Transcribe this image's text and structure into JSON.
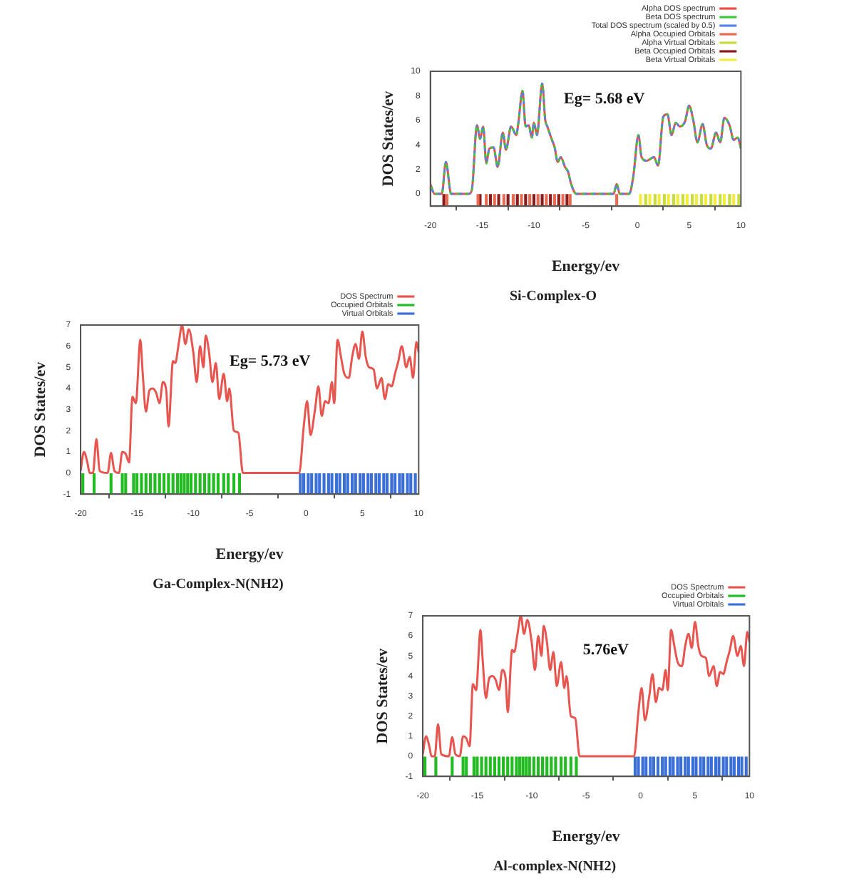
{
  "chart_data": [
    {
      "type": "line",
      "title": "Si-Complex-O",
      "xlabel": "Energy/ev",
      "ylabel": "DOS States/ev",
      "xlim": [
        -20,
        10
      ],
      "xticks": [
        -20,
        -15,
        -10,
        -5,
        0,
        5,
        10
      ],
      "ylim": [
        -1,
        10
      ],
      "yticks": [
        0,
        2,
        4,
        6,
        8,
        10
      ],
      "legend": "top right",
      "annotations": [
        "Eg= 5.68 eV"
      ],
      "x": [
        -20,
        -19.6,
        -18.9,
        -18.5,
        -18,
        -16.3,
        -16,
        -15.5,
        -15.2,
        -14.9,
        -14.6,
        -14.3,
        -13.9,
        -13.5,
        -13,
        -12.7,
        -12.2,
        -11.7,
        -11.5,
        -11.1,
        -10.8,
        -10.5,
        -10.2,
        -10,
        -9.7,
        -9.2,
        -8.9,
        -8.7,
        -8.3,
        -8,
        -7.7,
        -7.4,
        -7,
        -6.7,
        -6.4,
        -5.9,
        -2.3,
        -2,
        -1.7,
        -0.8,
        -0.4,
        0.1,
        0.4,
        0.9,
        1.6,
        2,
        2.5,
        2.9,
        3.3,
        3.7,
        4.1,
        4.6,
        5,
        5.4,
        5.8,
        6.3,
        6.7,
        7.1,
        7.6,
        8,
        8.4,
        8.9,
        9.3,
        9.7,
        10
      ],
      "series": [
        {
          "name": "Alpha DOS spectrum",
          "color": "#e8504a",
          "values": [
            0.8,
            0,
            0,
            2.6,
            0,
            0,
            0.3,
            5.6,
            4.5,
            5.5,
            2.5,
            3.7,
            3.8,
            2.2,
            5,
            3.6,
            5.5,
            4.8,
            5.8,
            8.4,
            5.5,
            5.6,
            4.6,
            5.8,
            4.8,
            9,
            6,
            5.5,
            4.5,
            3.8,
            2.6,
            3,
            2.2,
            1.8,
            0.8,
            0,
            0,
            0.8,
            0,
            0,
            1.4,
            4.8,
            3,
            2.7,
            3,
            2.3,
            6.3,
            6.5,
            4.8,
            5.8,
            5.5,
            5.9,
            7.2,
            6,
            4.2,
            5.7,
            4,
            3.7,
            5,
            4.2,
            6.2,
            5.6,
            4.4,
            4.6,
            3.7
          ]
        },
        {
          "name": "Beta DOS spectrum",
          "color": "#3cc83c",
          "line_style": "dashed",
          "values": [
            0.8,
            0,
            0,
            2.6,
            0,
            0,
            0.3,
            5.6,
            4.5,
            5.5,
            2.5,
            3.7,
            3.8,
            2.2,
            5,
            3.6,
            5.5,
            4.8,
            5.8,
            8.4,
            5.5,
            5.6,
            4.6,
            5.8,
            4.8,
            9,
            6,
            5.5,
            4.5,
            3.8,
            2.6,
            3,
            2.2,
            1.8,
            0.8,
            0,
            0,
            0.8,
            0,
            0,
            1.4,
            4.8,
            3,
            2.7,
            3,
            2.3,
            6.3,
            6.5,
            4.8,
            5.8,
            5.5,
            5.9,
            7.2,
            6,
            4.2,
            5.7,
            4,
            3.7,
            5,
            4.2,
            6.2,
            5.6,
            4.4,
            4.6,
            3.7
          ]
        },
        {
          "name": "Total DOS spectrum (scaled by 0.5)",
          "color": "#5a82e6",
          "line_style": "dashed",
          "values": [
            0.8,
            0,
            0,
            2.6,
            0,
            0,
            0.3,
            5.6,
            4.5,
            5.5,
            2.5,
            3.7,
            3.8,
            2.2,
            5,
            3.6,
            5.5,
            4.8,
            5.8,
            8.4,
            5.5,
            5.6,
            4.6,
            5.8,
            4.8,
            9,
            6,
            5.5,
            4.5,
            3.8,
            2.6,
            3,
            2.2,
            1.8,
            0.8,
            0,
            0,
            0.8,
            0,
            0,
            1.4,
            4.8,
            3,
            2.7,
            3,
            2.3,
            6.3,
            6.5,
            4.8,
            5.8,
            5.5,
            5.9,
            7.2,
            6,
            4.2,
            5.7,
            4,
            3.7,
            5,
            4.2,
            6.2,
            5.6,
            4.4,
            4.6,
            3.7
          ]
        },
        {
          "name": "Alpha Occupied Orbitals",
          "type": "bar",
          "color": "#e86a50",
          "x": [
            -18.4,
            -15.4,
            -14.6,
            -13.8,
            -12.9,
            -12,
            -11.2,
            -10.4,
            -9.6,
            -8.8,
            -8,
            -7.2,
            -6.5,
            -2
          ],
          "values": [
            1,
            1,
            1,
            1,
            1,
            1,
            1,
            1,
            1,
            1,
            1,
            1,
            1,
            1
          ],
          "base": [
            -1,
            -1,
            -1,
            -1,
            -1,
            -1,
            -1,
            -1,
            -1,
            -1,
            -1,
            -1,
            -1,
            -1
          ]
        },
        {
          "name": "Alpha Virtual Orbitals",
          "type": "bar",
          "color": "#c8dc3c",
          "x": [
            0.8,
            1.7,
            2.6,
            3.5,
            4.4,
            5.3,
            6.2,
            7.1,
            8,
            8.9,
            9.8
          ],
          "values": [
            1,
            1,
            1,
            1,
            1,
            1,
            1,
            1,
            1,
            1,
            1
          ],
          "base": [
            -1,
            -1,
            -1,
            -1,
            -1,
            -1,
            -1,
            -1,
            -1,
            -1,
            -1
          ]
        },
        {
          "name": "Beta Occupied Orbitals",
          "type": "bar",
          "color": "#8b1a1a",
          "x": [
            -18.7,
            -15.2,
            -14.2,
            -13.4,
            -12.5,
            -11.6,
            -10.8,
            -10,
            -9.2,
            -8.4,
            -7.6,
            -6.8
          ],
          "values": [
            1,
            1,
            1,
            1,
            1,
            1,
            1,
            1,
            1,
            1,
            1,
            1
          ],
          "base": [
            -1,
            -1,
            -1,
            -1,
            -1,
            -1,
            -1,
            -1,
            -1,
            -1,
            -1,
            -1
          ]
        },
        {
          "name": "Beta Virtual Orbitals",
          "type": "bar",
          "color": "#f2ec3a",
          "x": [
            0.3,
            1.2,
            2.1,
            3,
            3.9,
            4.8,
            5.7,
            6.6,
            7.5,
            8.4,
            9.3
          ],
          "values": [
            1,
            1,
            1,
            1,
            1,
            1,
            1,
            1,
            1,
            1,
            1
          ],
          "base": [
            -1,
            -1,
            -1,
            -1,
            -1,
            -1,
            -1,
            -1,
            -1,
            -1,
            -1
          ]
        }
      ]
    },
    {
      "type": "line",
      "title": "Ga-Complex-N(NH2)",
      "xlabel": "Energy/ev",
      "ylabel": "DOS States/ev",
      "xlim": [
        -20,
        10
      ],
      "xticks": [
        -20,
        -15,
        -10,
        -5,
        0,
        5,
        10
      ],
      "ylim": [
        -1,
        7
      ],
      "yticks": [
        -1,
        0,
        1,
        2,
        3,
        4,
        5,
        6,
        7
      ],
      "legend": "top right",
      "annotations": [
        "Eg= 5.73 eV"
      ],
      "x": [
        -20,
        -19.7,
        -19.4,
        -19.2,
        -18.9,
        -18.6,
        -18.3,
        -17.6,
        -17.3,
        -17,
        -16.6,
        -16.3,
        -16,
        -15.7,
        -15.4,
        -15.1,
        -14.7,
        -14.5,
        -14.2,
        -13.9,
        -13.6,
        -13.3,
        -13,
        -12.7,
        -12.4,
        -12.2,
        -11.8,
        -11.6,
        -11.3,
        -11,
        -10.7,
        -10.4,
        -10,
        -9.7,
        -9.4,
        -9.1,
        -8.9,
        -8.6,
        -8.3,
        -8,
        -7.7,
        -7.3,
        -7,
        -6.8,
        -6.4,
        -6,
        -5.6,
        -0.6,
        -0.2,
        0.1,
        0.4,
        0.8,
        1.1,
        1.4,
        1.7,
        2,
        2.3,
        2.5,
        2.8,
        3.1,
        3.4,
        3.8,
        4.1,
        4.4,
        4.7,
        5,
        5.3,
        5.6,
        6,
        6.3,
        6.7,
        7,
        7.3,
        7.6,
        7.9,
        8.2,
        8.5,
        8.9,
        9.2,
        9.5,
        9.8,
        10
      ],
      "series": [
        {
          "name": "DOS Spectrum",
          "color": "#e8544e",
          "values": [
            0.1,
            1,
            0.5,
            0,
            0,
            1.6,
            0.1,
            0,
            0.95,
            0.1,
            0,
            1,
            0.9,
            0.5,
            3.6,
            3.3,
            6.3,
            4.8,
            2.9,
            3.9,
            4,
            3.8,
            3.3,
            4.3,
            3.9,
            2.2,
            5.3,
            5.2,
            6.1,
            7,
            6.1,
            6.8,
            5.7,
            4.3,
            6,
            5,
            6.5,
            5.7,
            4.3,
            5.2,
            3.5,
            4.7,
            3.4,
            4,
            2,
            1.9,
            0,
            0,
            2.2,
            3.4,
            1.8,
            3,
            4.1,
            2.7,
            3.4,
            3.3,
            4.3,
            3.3,
            6.3,
            5.5,
            4.7,
            4.5,
            5.5,
            6.1,
            5.4,
            6.7,
            5.5,
            5,
            4.9,
            4,
            4.5,
            3.5,
            4.2,
            4.1,
            4.7,
            5.3,
            6,
            5,
            5.5,
            4.5,
            6.2,
            5.7
          ]
        },
        {
          "name": "Occupied Orbitals",
          "type": "bar",
          "color": "#22bb22",
          "x": [
            -19.8,
            -18.8,
            -17.3,
            -16.3,
            -16,
            -15.3,
            -15,
            -14.6,
            -14.2,
            -13.8,
            -13.4,
            -13,
            -12.6,
            -12.2,
            -11.8,
            -11.4,
            -11.1,
            -10.8,
            -10.5,
            -10.2,
            -9.8,
            -9.4,
            -9,
            -8.6,
            -8.2,
            -7.8,
            -7.3,
            -6.9,
            -6.4,
            -5.9
          ],
          "values": [
            1,
            1,
            1,
            1,
            1,
            1,
            1,
            1,
            1,
            1,
            1,
            1,
            1,
            1,
            1,
            1,
            1,
            1,
            1,
            1,
            1,
            1,
            1,
            1,
            1,
            1,
            1,
            1,
            1,
            1
          ],
          "base": [
            -1,
            -1,
            -1,
            -1,
            -1,
            -1,
            -1,
            -1,
            -1,
            -1,
            -1,
            -1,
            -1,
            -1,
            -1,
            -1,
            -1,
            -1,
            -1,
            -1,
            -1,
            -1,
            -1,
            -1,
            -1,
            -1,
            -1,
            -1,
            -1,
            -1
          ]
        },
        {
          "name": "Virtual Orbitals",
          "type": "bar",
          "color": "#3a6fd8",
          "x": [
            -0.5,
            -0.2,
            0.2,
            0.5,
            0.9,
            1.2,
            1.6,
            2,
            2.3,
            2.7,
            3,
            3.4,
            3.7,
            4.1,
            4.4,
            4.8,
            5.1,
            5.5,
            5.8,
            6.2,
            6.5,
            6.9,
            7.2,
            7.6,
            7.9,
            8.3,
            8.6,
            9,
            9.3,
            9.7
          ],
          "values": [
            1,
            1,
            1,
            1,
            1,
            1,
            1,
            1,
            1,
            1,
            1,
            1,
            1,
            1,
            1,
            1,
            1,
            1,
            1,
            1,
            1,
            1,
            1,
            1,
            1,
            1,
            1,
            1,
            1,
            1
          ],
          "base": [
            -1,
            -1,
            -1,
            -1,
            -1,
            -1,
            -1,
            -1,
            -1,
            -1,
            -1,
            -1,
            -1,
            -1,
            -1,
            -1,
            -1,
            -1,
            -1,
            -1,
            -1,
            -1,
            -1,
            -1,
            -1,
            -1,
            -1,
            -1,
            -1,
            -1
          ]
        }
      ]
    },
    {
      "type": "line",
      "title": "Al-complex-N(NH2)",
      "xlabel": "Energy/ev",
      "ylabel": "DOS States/ev",
      "xlim": [
        -20,
        10
      ],
      "xticks": [
        -20,
        -15,
        -10,
        -5,
        0,
        5,
        10
      ],
      "ylim": [
        -1,
        7
      ],
      "yticks": [
        -1,
        0,
        1,
        2,
        3,
        4,
        5,
        6,
        7
      ],
      "legend": "top right",
      "annotations": [
        "5.76eV"
      ],
      "x": [
        -20,
        -19.7,
        -19.4,
        -19.2,
        -18.9,
        -18.6,
        -18.3,
        -17.6,
        -17.3,
        -17,
        -16.6,
        -16.3,
        -16,
        -15.7,
        -15.4,
        -15.1,
        -14.7,
        -14.5,
        -14.2,
        -13.9,
        -13.6,
        -13.3,
        -13,
        -12.7,
        -12.4,
        -12.2,
        -11.8,
        -11.6,
        -11.3,
        -11,
        -10.7,
        -10.4,
        -10,
        -9.7,
        -9.4,
        -9.1,
        -8.9,
        -8.6,
        -8.3,
        -8,
        -7.7,
        -7.3,
        -7,
        -6.8,
        -6.4,
        -6,
        -5.6,
        -0.6,
        -0.2,
        0.1,
        0.4,
        0.8,
        1.1,
        1.4,
        1.7,
        2,
        2.3,
        2.5,
        2.8,
        3.1,
        3.4,
        3.8,
        4.1,
        4.4,
        4.7,
        5,
        5.3,
        5.6,
        6,
        6.3,
        6.7,
        7,
        7.3,
        7.6,
        7.9,
        8.2,
        8.5,
        8.9,
        9.2,
        9.5,
        9.8,
        10
      ],
      "series": [
        {
          "name": "DOS Spectrum",
          "color": "#e8544e",
          "values": [
            0.1,
            1,
            0.5,
            0,
            0,
            1.6,
            0.1,
            0,
            0.95,
            0.1,
            0,
            1,
            0.9,
            0.5,
            3.6,
            3.3,
            6.3,
            4.8,
            2.9,
            3.9,
            4,
            3.8,
            3.3,
            4.3,
            3.9,
            2.2,
            5.3,
            5.2,
            6.1,
            7,
            6.1,
            6.8,
            5.7,
            4.3,
            6,
            5,
            6.5,
            5.7,
            4.3,
            5.2,
            3.5,
            4.7,
            3.4,
            4,
            2,
            1.9,
            0,
            0,
            2.2,
            3.4,
            1.8,
            3,
            4.1,
            2.7,
            3.4,
            3.3,
            4.3,
            3.3,
            6.3,
            5.5,
            4.7,
            4.5,
            5.5,
            6.1,
            5.4,
            6.7,
            5.5,
            5,
            4.9,
            4,
            4.5,
            3.5,
            4.2,
            4.1,
            4.7,
            5.3,
            6,
            5,
            5.5,
            4.5,
            6.2,
            5.7
          ]
        },
        {
          "name": "Occupied Orbitals",
          "type": "bar",
          "color": "#22bb22",
          "x": [
            -19.8,
            -18.8,
            -17.3,
            -16.3,
            -16,
            -15.3,
            -15,
            -14.6,
            -14.2,
            -13.8,
            -13.4,
            -13,
            -12.6,
            -12.2,
            -11.8,
            -11.4,
            -11.1,
            -10.8,
            -10.5,
            -10.2,
            -9.8,
            -9.4,
            -9,
            -8.6,
            -8.2,
            -7.8,
            -7.3,
            -6.9,
            -6.4,
            -5.9
          ],
          "values": [
            1,
            1,
            1,
            1,
            1,
            1,
            1,
            1,
            1,
            1,
            1,
            1,
            1,
            1,
            1,
            1,
            1,
            1,
            1,
            1,
            1,
            1,
            1,
            1,
            1,
            1,
            1,
            1,
            1,
            1
          ],
          "base": [
            -1,
            -1,
            -1,
            -1,
            -1,
            -1,
            -1,
            -1,
            -1,
            -1,
            -1,
            -1,
            -1,
            -1,
            -1,
            -1,
            -1,
            -1,
            -1,
            -1,
            -1,
            -1,
            -1,
            -1,
            -1,
            -1,
            -1,
            -1,
            -1,
            -1
          ]
        },
        {
          "name": "Virtual Orbitals",
          "type": "bar",
          "color": "#3a6fd8",
          "x": [
            -0.5,
            -0.2,
            0.2,
            0.5,
            0.9,
            1.2,
            1.6,
            2,
            2.3,
            2.7,
            3,
            3.4,
            3.7,
            4.1,
            4.4,
            4.8,
            5.1,
            5.5,
            5.8,
            6.2,
            6.5,
            6.9,
            7.2,
            7.6,
            7.9,
            8.3,
            8.6,
            9,
            9.3,
            9.7
          ],
          "values": [
            1,
            1,
            1,
            1,
            1,
            1,
            1,
            1,
            1,
            1,
            1,
            1,
            1,
            1,
            1,
            1,
            1,
            1,
            1,
            1,
            1,
            1,
            1,
            1,
            1,
            1,
            1,
            1,
            1,
            1
          ],
          "base": [
            -1,
            -1,
            -1,
            -1,
            -1,
            -1,
            -1,
            -1,
            -1,
            -1,
            -1,
            -1,
            -1,
            -1,
            -1,
            -1,
            -1,
            -1,
            -1,
            -1,
            -1,
            -1,
            -1,
            -1,
            -1,
            -1,
            -1,
            -1,
            -1,
            -1
          ]
        }
      ]
    }
  ]
}
